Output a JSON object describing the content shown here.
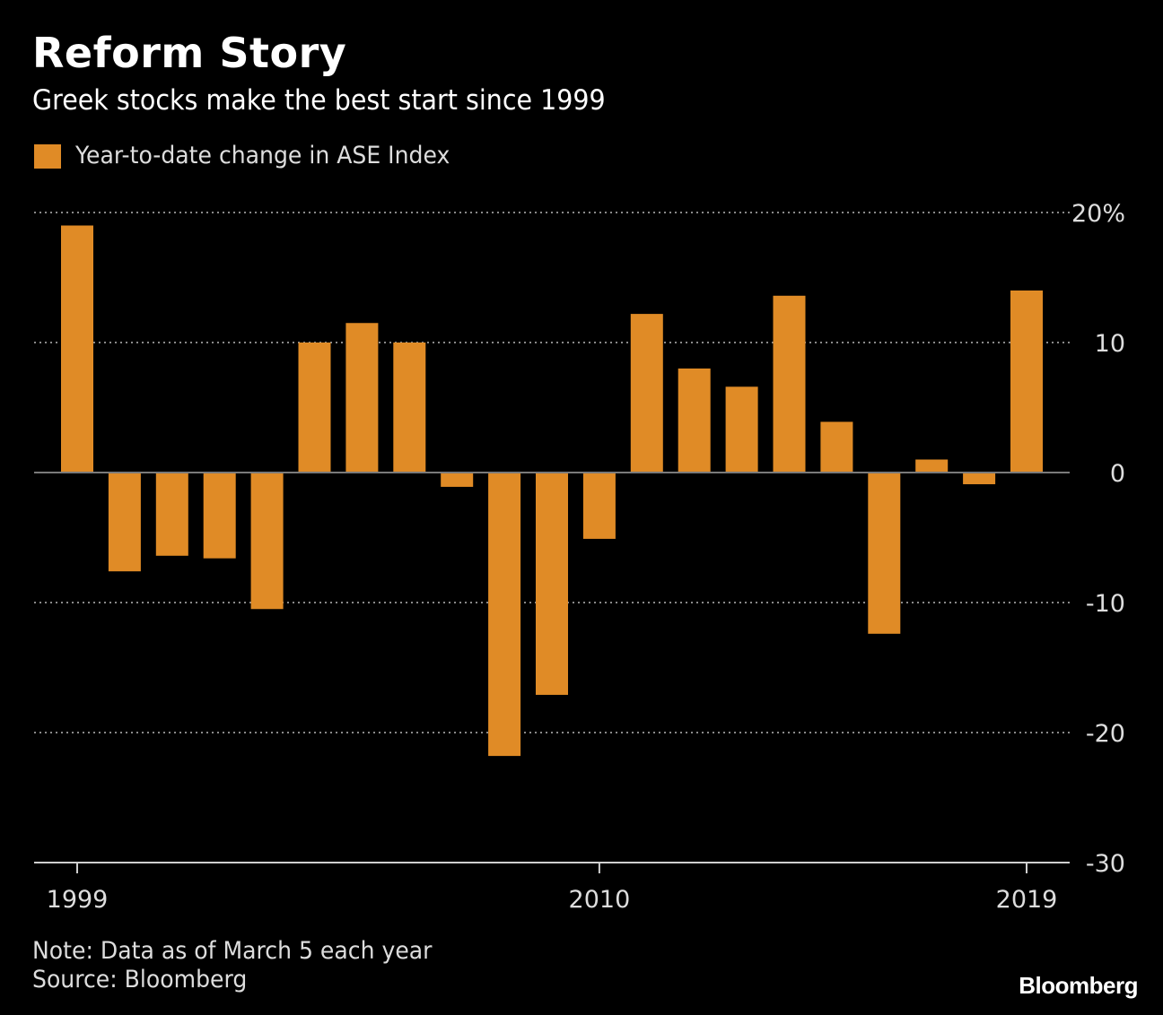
{
  "header": {
    "title": "Reform Story",
    "subtitle": "Greek stocks make the best start since 1999"
  },
  "legend": {
    "label": "Year-to-date change in ASE Index",
    "color": "#e08b26"
  },
  "footer": {
    "note": "Note: Data as of March 5 each year",
    "source": "Source: Bloomberg",
    "brand": "Bloomberg"
  },
  "chart_data": {
    "type": "bar",
    "categories": [
      "1999",
      "2000",
      "2001",
      "2002",
      "2003",
      "2004",
      "2005",
      "2006",
      "2007",
      "2008",
      "2009",
      "2010",
      "2011",
      "2012",
      "2013",
      "2014",
      "2015",
      "2016",
      "2017",
      "2018",
      "2019"
    ],
    "series": [
      {
        "values": [
          19.0,
          -7.6,
          -6.4,
          -6.6,
          -10.5,
          10.0,
          11.5,
          10.0,
          -1.1,
          -21.8,
          -17.1,
          -5.1,
          12.2,
          8.0,
          6.6,
          13.6,
          3.9,
          -12.4,
          1.0,
          -0.9,
          14.0
        ],
        "color": "#e08b26"
      }
    ],
    "x_tick_labels": [
      "1999",
      "2010",
      "2019"
    ],
    "y_tick_labels": [
      "20%",
      "10",
      "0",
      "-10",
      "-20",
      "-30"
    ],
    "y_ticks": [
      20,
      10,
      0,
      -10,
      -20,
      -30
    ],
    "ylim": [
      -30,
      20
    ],
    "grid": true,
    "grid_style": "dotted",
    "legend_position": "top-left",
    "y_axis_position": "right"
  }
}
